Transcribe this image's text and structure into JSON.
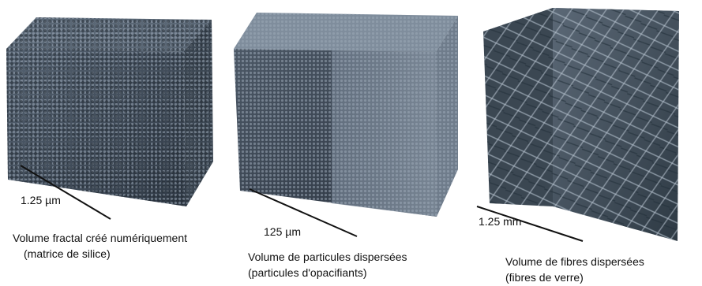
{
  "panels": [
    {
      "scale_label": "1.25 µm",
      "caption_line1": "Volume fractal créé numériquement",
      "caption_line2": "(matrice de silice)"
    },
    {
      "scale_label": "125 µm",
      "caption_line1": "Volume de particules dispersées",
      "caption_line2": "(particules d'opacifiants)"
    },
    {
      "scale_label": "1.25 mm",
      "caption_line1": "Volume de fibres dispersées",
      "caption_line2": "(fibres de verre)"
    }
  ],
  "colors": {
    "fractal_dark": "#2f3945",
    "fractal_light": "#7d8a99",
    "particle_dark": "#2b3440",
    "particle_light": "#8e9cab",
    "fiber_dark": "#2e3a44",
    "fiber_light": "#9aa9b6"
  }
}
